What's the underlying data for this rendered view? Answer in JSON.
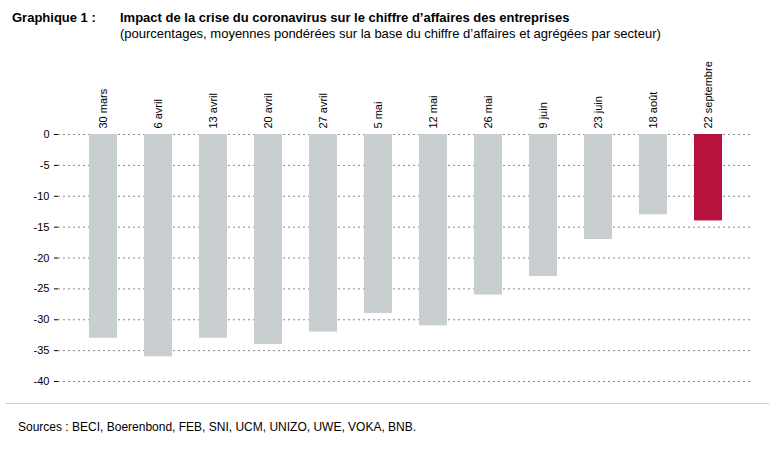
{
  "chart_data": {
    "type": "bar",
    "annotations": [
      "Graphique 1 :"
    ],
    "title": "Impact de la crise du coronavirus sur le chiffre d’affaires des entreprises",
    "subtitle": "(pourcentages, moyennes pondérées sur la base du chiffre d’affaires et agrégées par secteur)",
    "source": "Sources : BECI, Boerenbond, FEB, SNI, UCM, UNIZO, UWE, VOKA, BNB.",
    "categories": [
      "30 mars",
      "6 avril",
      "13 avril",
      "20 avril",
      "27 avril",
      "5 mai",
      "12 mai",
      "26 mai",
      "9 juin",
      "23 juin",
      "18 août",
      "22 septembre"
    ],
    "values": [
      -33,
      -36,
      -33,
      -34,
      -32,
      -29,
      -31,
      -26,
      -23,
      -17,
      -13,
      -14
    ],
    "colors": [
      "#c9ced1",
      "#c9ced1",
      "#c9ced1",
      "#c9ced1",
      "#c9ced1",
      "#c9ced1",
      "#c9ced1",
      "#c9ced1",
      "#c9ced1",
      "#c9ced1",
      "#c9ced1",
      "#b5123e"
    ],
    "ylim": [
      -40,
      0
    ],
    "yticks": [
      0,
      -5,
      -10,
      -15,
      -20,
      -25,
      -30,
      -35,
      -40
    ],
    "grid": true
  }
}
